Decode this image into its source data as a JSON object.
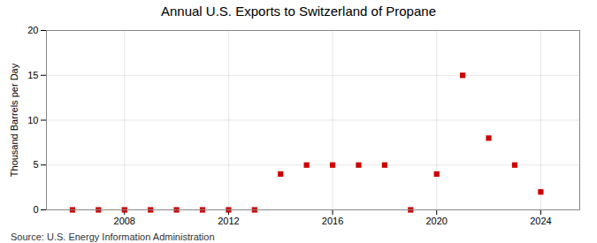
{
  "chart_data": {
    "type": "scatter",
    "title": "Annual U.S. Exports to Switzerland of Propane",
    "ylabel": "Thousand Barrels per Day",
    "source": "Source: U.S. Energy Information Administration",
    "x": [
      2006,
      2007,
      2008,
      2009,
      2010,
      2011,
      2012,
      2013,
      2014,
      2015,
      2016,
      2017,
      2018,
      2019,
      2020,
      2021,
      2022,
      2023,
      2024
    ],
    "values": [
      0,
      0,
      0,
      0,
      0,
      0,
      0,
      0,
      4,
      5,
      5,
      5,
      5,
      0,
      4,
      15,
      8,
      5,
      2
    ],
    "color": "#cc0000",
    "marker": "square",
    "xlim": [
      2005.0,
      2025.5
    ],
    "xticks": [
      2008,
      2012,
      2016,
      2020,
      2024
    ],
    "ylim": [
      0,
      20
    ],
    "yticks": [
      0,
      5,
      10,
      15,
      20
    ],
    "grid": true
  }
}
